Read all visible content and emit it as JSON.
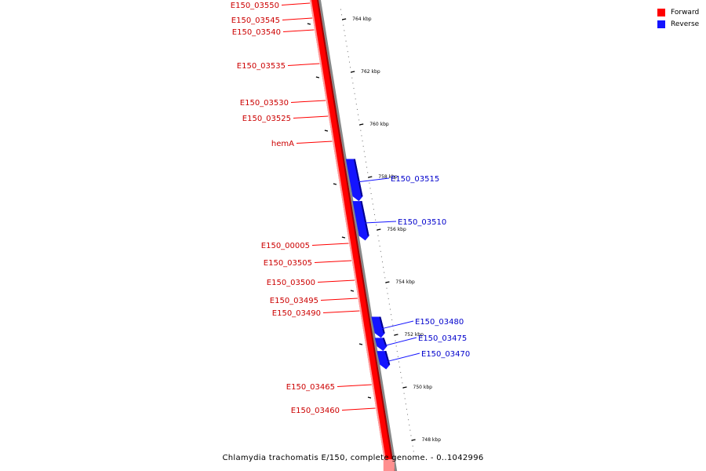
{
  "genome_caption": "Chlamydia trachomatis E/150, complete genome. - 0..1042996",
  "legend": {
    "items": [
      {
        "label": "Forward",
        "color": "#ff0000"
      },
      {
        "label": "Reverse",
        "color": "#1414ff"
      }
    ]
  },
  "colors": {
    "forward": "#ff0000",
    "forward_dark": "#a00000",
    "forward_light": "#ff9a9a",
    "reverse": "#1414ff",
    "reverse_dark": "#00008c",
    "backbone": "#888888",
    "tick": "#000000"
  },
  "scale": {
    "unit": "kbp",
    "ticks": [
      {
        "kbp": 764,
        "label": "764 kbp"
      },
      {
        "kbp": 762,
        "label": "762 kbp"
      },
      {
        "kbp": 760,
        "label": "760 kbp"
      },
      {
        "kbp": 758,
        "label": "758 kbp"
      },
      {
        "kbp": 756,
        "label": "756 kbp"
      },
      {
        "kbp": 754,
        "label": "754 kbp"
      },
      {
        "kbp": 752,
        "label": "752 kbp"
      },
      {
        "kbp": 750,
        "label": "750 kbp"
      },
      {
        "kbp": 748,
        "label": "748 kbp"
      }
    ]
  },
  "forward_genes": [
    {
      "label": "E150_03550"
    },
    {
      "label": "E150_03545"
    },
    {
      "label": "E150_03540"
    },
    {
      "label": "E150_03535"
    },
    {
      "label": "E150_03530"
    },
    {
      "label": "E150_03525"
    },
    {
      "label": "hemA"
    },
    {
      "label": "E150_00005"
    },
    {
      "label": "E150_03505"
    },
    {
      "label": "E150_03500"
    },
    {
      "label": "E150_03495"
    },
    {
      "label": "E150_03490"
    },
    {
      "label": "E150_03465"
    },
    {
      "label": "E150_03460"
    }
  ],
  "reverse_genes": [
    {
      "label": "E150_03515",
      "start_kbp": 758.7,
      "end_kbp": 757.1
    },
    {
      "label": "E150_03510",
      "start_kbp": 757.1,
      "end_kbp": 755.6
    },
    {
      "label": "E150_03480",
      "start_kbp": 752.7,
      "end_kbp": 751.9
    },
    {
      "label": "E150_03475",
      "start_kbp": 751.9,
      "end_kbp": 751.4
    },
    {
      "label": "E150_03470",
      "start_kbp": 751.4,
      "end_kbp": 750.7
    }
  ]
}
